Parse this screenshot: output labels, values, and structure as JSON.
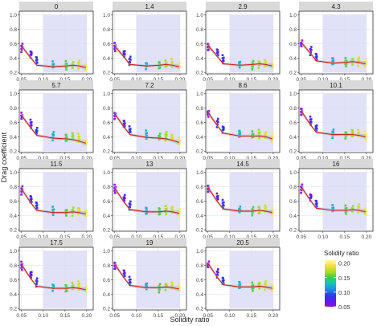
{
  "figure": {
    "xlabel": "Solidity ratio",
    "ylabel": "Drag coefficient"
  },
  "legend": {
    "title": "Solidity ratio",
    "ticks": [
      "0.20",
      "0.15",
      "0.10",
      "0.05"
    ],
    "tick_values": [
      0.2,
      0.15,
      0.1,
      0.05
    ],
    "range": [
      0.05,
      0.21
    ],
    "colors": [
      "#fff6a8",
      "#f6dc3c",
      "#a8e11e",
      "#2fd04a",
      "#12c7b8",
      "#1e8cf0",
      "#2a3fe6",
      "#5a1cf0",
      "#8c0fe0"
    ]
  },
  "colors": {
    "panel_border": "#333333",
    "strip_bg": "#d9d9d9",
    "highlight_band": "#dcdcf7",
    "fit_line": "#cc1f1f",
    "ci_band": "#b9b9b9",
    "grid": "#e6e6e6"
  },
  "chart_data": {
    "type": "scatter",
    "facet_variable_note": "",
    "shaded_x_range": [
      0.1,
      0.2
    ],
    "xlim": [
      0.045,
      0.215
    ],
    "ylim": [
      0.18,
      1.05
    ],
    "x_ticks": [
      0.05,
      0.1,
      0.15,
      0.2
    ],
    "x_tick_labels": [
      "0.05",
      "0.10",
      "0.15",
      "0.20"
    ],
    "y_ticks": [
      0.2,
      0.4,
      0.6,
      0.8,
      1.0
    ],
    "y_tick_labels": [
      "0.2",
      "0.4",
      "0.6",
      "0.8",
      "1.0"
    ],
    "solidity_levels": [
      0.051,
      0.072,
      0.085,
      0.123,
      0.153,
      0.168,
      0.182,
      0.198
    ],
    "panels": [
      {
        "label": "0",
        "means": [
          0.55,
          0.46,
          0.37,
          0.3,
          0.29,
          0.3,
          0.31,
          0.28
        ],
        "fit": [
          0.56,
          0.4,
          0.3,
          0.28,
          0.29,
          0.3,
          0.29,
          0.27
        ]
      },
      {
        "label": "1.4",
        "means": [
          0.55,
          0.46,
          0.37,
          0.3,
          0.3,
          0.31,
          0.32,
          0.29
        ],
        "fit": [
          0.56,
          0.41,
          0.31,
          0.29,
          0.3,
          0.31,
          0.3,
          0.28
        ]
      },
      {
        "label": "2.9",
        "means": [
          0.56,
          0.47,
          0.38,
          0.31,
          0.31,
          0.32,
          0.33,
          0.3
        ],
        "fit": [
          0.57,
          0.42,
          0.32,
          0.3,
          0.31,
          0.32,
          0.31,
          0.29
        ]
      },
      {
        "label": "4.3",
        "means": [
          0.6,
          0.5,
          0.42,
          0.35,
          0.34,
          0.35,
          0.36,
          0.33
        ],
        "fit": [
          0.61,
          0.46,
          0.36,
          0.33,
          0.34,
          0.35,
          0.34,
          0.32
        ]
      },
      {
        "label": "5.7",
        "means": [
          0.68,
          0.57,
          0.48,
          0.41,
          0.39,
          0.4,
          0.38,
          0.32
        ],
        "fit": [
          0.69,
          0.52,
          0.42,
          0.38,
          0.37,
          0.36,
          0.34,
          0.31
        ]
      },
      {
        "label": "7.2",
        "means": [
          0.7,
          0.58,
          0.49,
          0.42,
          0.4,
          0.41,
          0.39,
          0.33
        ],
        "fit": [
          0.71,
          0.53,
          0.43,
          0.39,
          0.38,
          0.37,
          0.35,
          0.32
        ]
      },
      {
        "label": "8.6",
        "means": [
          0.72,
          0.6,
          0.51,
          0.44,
          0.42,
          0.43,
          0.42,
          0.38
        ],
        "fit": [
          0.73,
          0.55,
          0.45,
          0.41,
          0.41,
          0.41,
          0.4,
          0.37
        ]
      },
      {
        "label": "10.1",
        "means": [
          0.74,
          0.62,
          0.52,
          0.45,
          0.43,
          0.45,
          0.44,
          0.4
        ],
        "fit": [
          0.75,
          0.56,
          0.46,
          0.43,
          0.43,
          0.43,
          0.42,
          0.4
        ]
      },
      {
        "label": "11.5",
        "means": [
          0.75,
          0.63,
          0.53,
          0.46,
          0.44,
          0.46,
          0.47,
          0.43
        ],
        "fit": [
          0.76,
          0.57,
          0.47,
          0.44,
          0.44,
          0.45,
          0.44,
          0.42
        ]
      },
      {
        "label": "13",
        "means": [
          0.76,
          0.64,
          0.54,
          0.47,
          0.45,
          0.47,
          0.48,
          0.44
        ],
        "fit": [
          0.77,
          0.58,
          0.48,
          0.45,
          0.45,
          0.46,
          0.45,
          0.43
        ]
      },
      {
        "label": "14.5",
        "means": [
          0.77,
          0.65,
          0.55,
          0.48,
          0.46,
          0.48,
          0.49,
          0.45
        ],
        "fit": [
          0.78,
          0.59,
          0.49,
          0.46,
          0.46,
          0.47,
          0.46,
          0.44
        ]
      },
      {
        "label": "16",
        "means": [
          0.78,
          0.66,
          0.56,
          0.49,
          0.47,
          0.49,
          0.5,
          0.46
        ],
        "fit": [
          0.79,
          0.6,
          0.5,
          0.47,
          0.47,
          0.48,
          0.47,
          0.45
        ]
      },
      {
        "label": "17.5",
        "means": [
          0.79,
          0.67,
          0.57,
          0.5,
          0.48,
          0.5,
          0.51,
          0.47
        ],
        "fit": [
          0.8,
          0.61,
          0.51,
          0.48,
          0.48,
          0.49,
          0.48,
          0.46
        ]
      },
      {
        "label": "19",
        "means": [
          0.8,
          0.68,
          0.58,
          0.51,
          0.49,
          0.51,
          0.52,
          0.48
        ],
        "fit": [
          0.81,
          0.62,
          0.52,
          0.49,
          0.49,
          0.5,
          0.49,
          0.47
        ]
      },
      {
        "label": "20.5",
        "means": [
          0.81,
          0.69,
          0.59,
          0.52,
          0.5,
          0.52,
          0.53,
          0.49
        ],
        "fit": [
          0.82,
          0.63,
          0.53,
          0.5,
          0.5,
          0.51,
          0.5,
          0.48
        ]
      }
    ]
  }
}
